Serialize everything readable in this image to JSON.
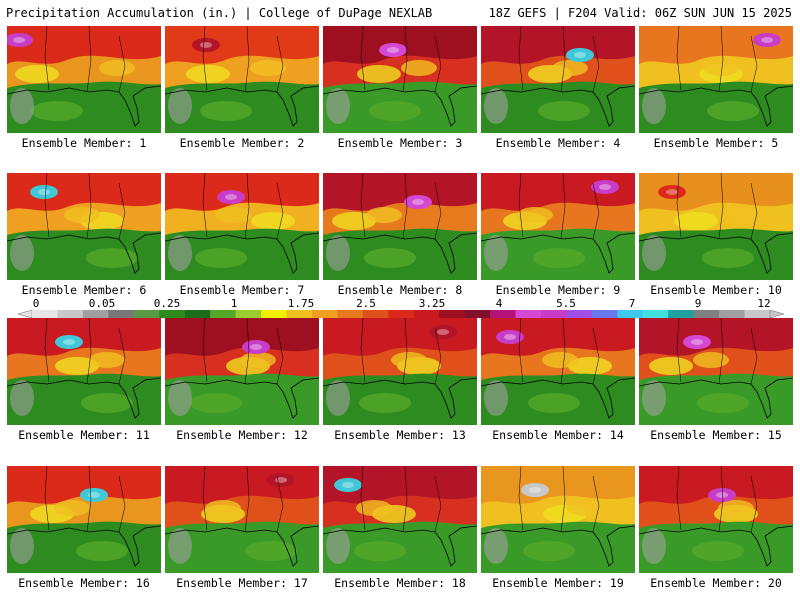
{
  "header": {
    "left": "Precipitation Accumulation (in.) | College of DuPage NEXLAB",
    "right": "18Z GEFS | F204 Valid: 06Z SUN JUN 15 2025"
  },
  "member_label_prefix": "Ensemble Member:",
  "panels": [
    {
      "member": "1",
      "base": "#e8961e",
      "north": "#dc2a1a",
      "south": "#2e8b20",
      "accent": "#c83cc8"
    },
    {
      "member": "2",
      "base": "#f0a020",
      "north": "#e03a18",
      "south": "#2e8b20",
      "accent": "#b41428"
    },
    {
      "member": "3",
      "base": "#d83020",
      "north": "#9e1020",
      "south": "#3a9a28",
      "accent": "#d448d4"
    },
    {
      "member": "4",
      "base": "#e0501a",
      "north": "#b41428",
      "south": "#2e8b20",
      "accent": "#40c8d8"
    },
    {
      "member": "5",
      "base": "#f0c020",
      "north": "#e8761e",
      "south": "#2e8b20",
      "accent": "#c83cc8"
    },
    {
      "member": "6",
      "base": "#f0a020",
      "north": "#dc2a1a",
      "south": "#2e8b20",
      "accent": "#40c8d8"
    },
    {
      "member": "7",
      "base": "#f0b020",
      "north": "#dc2a1a",
      "south": "#2e8b20",
      "accent": "#c83cc8"
    },
    {
      "member": "8",
      "base": "#e87a1e",
      "north": "#b41428",
      "south": "#2e8b20",
      "accent": "#d448d4"
    },
    {
      "member": "9",
      "base": "#e8761e",
      "north": "#c81a20",
      "south": "#3a9a28",
      "accent": "#c83cc8"
    },
    {
      "member": "10",
      "base": "#f0c020",
      "north": "#e8901e",
      "south": "#2e8b20",
      "accent": "#dc2a1a"
    },
    {
      "member": "11",
      "base": "#e8761e",
      "north": "#c81a20",
      "south": "#2e8b20",
      "accent": "#40c8d8"
    },
    {
      "member": "12",
      "base": "#d83020",
      "north": "#9e1020",
      "south": "#3a9a28",
      "accent": "#c83cc8"
    },
    {
      "member": "13",
      "base": "#e0501a",
      "north": "#c81a20",
      "south": "#2e8b20",
      "accent": "#b41428"
    },
    {
      "member": "14",
      "base": "#e8761e",
      "north": "#c81a20",
      "south": "#2e8b20",
      "accent": "#c83cc8"
    },
    {
      "member": "15",
      "base": "#e0501a",
      "north": "#b41428",
      "south": "#3a9a28",
      "accent": "#d448d4"
    },
    {
      "member": "16",
      "base": "#e8961e",
      "north": "#dc2a1a",
      "south": "#2e8b20",
      "accent": "#40c8d8"
    },
    {
      "member": "17",
      "base": "#e0501a",
      "north": "#c81a20",
      "south": "#3a9a28",
      "accent": "#b41428"
    },
    {
      "member": "18",
      "base": "#d83020",
      "north": "#b41428",
      "south": "#3a9a28",
      "accent": "#40c8d8"
    },
    {
      "member": "19",
      "base": "#f0c020",
      "north": "#e8961e",
      "south": "#3a9a28",
      "accent": "#c8c8c8"
    },
    {
      "member": "20",
      "base": "#e0501a",
      "north": "#c81a20",
      "south": "#3a9a28",
      "accent": "#c83cc8"
    }
  ],
  "color_scale": {
    "labels": [
      "0",
      "0.05",
      "0.25",
      "1",
      "1.75",
      "2.5",
      "3.25",
      "4",
      "5.5",
      "7",
      "9",
      "12"
    ],
    "colors": [
      "#e6e6e6",
      "#c8c8c8",
      "#a0a0a0",
      "#787878",
      "#5a9a46",
      "#2e8b20",
      "#1a6e1a",
      "#54a828",
      "#9acd32",
      "#f0f000",
      "#f0c020",
      "#f0a020",
      "#e87a1e",
      "#e0501a",
      "#dc2a1a",
      "#c81a20",
      "#9e1020",
      "#80102c",
      "#b41478",
      "#d448d4",
      "#c83cc8",
      "#a050e8",
      "#6a78f0",
      "#40c8f0",
      "#40e0e0",
      "#20a0a0",
      "#808080",
      "#a0a0a0",
      "#c8c8c8"
    ]
  }
}
